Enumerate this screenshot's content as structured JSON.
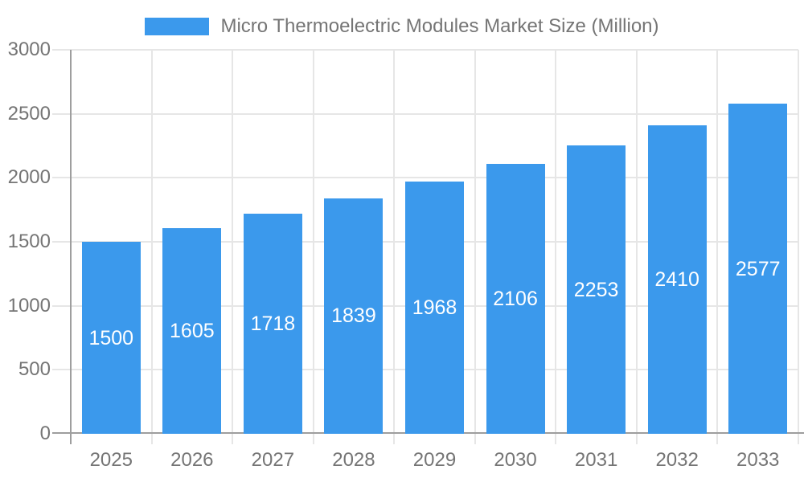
{
  "legend": {
    "label": "Micro Thermoelectric Modules Market Size (Million)"
  },
  "chart_data": {
    "type": "bar",
    "title": "Micro Thermoelectric Modules Market Size (Million)",
    "categories": [
      "2025",
      "2026",
      "2027",
      "2028",
      "2029",
      "2030",
      "2031",
      "2032",
      "2033"
    ],
    "values": [
      1500,
      1605,
      1718,
      1839,
      1968,
      2106,
      2253,
      2410,
      2577
    ],
    "xlabel": "",
    "ylabel": "",
    "ylim": [
      0,
      3000
    ],
    "yticks": [
      0,
      500,
      1000,
      1500,
      2000,
      2500,
      3000
    ],
    "grid": true,
    "legend_position": "top",
    "value_labels": "inside-center"
  },
  "colors": {
    "bar": "#3b99ec",
    "bar_value_text": "#ffffff",
    "axis_line": "#9e9e9e",
    "gridline": "#e6e6e6",
    "tick_text": "#757575",
    "legend_text": "#757575",
    "background": "#ffffff"
  }
}
